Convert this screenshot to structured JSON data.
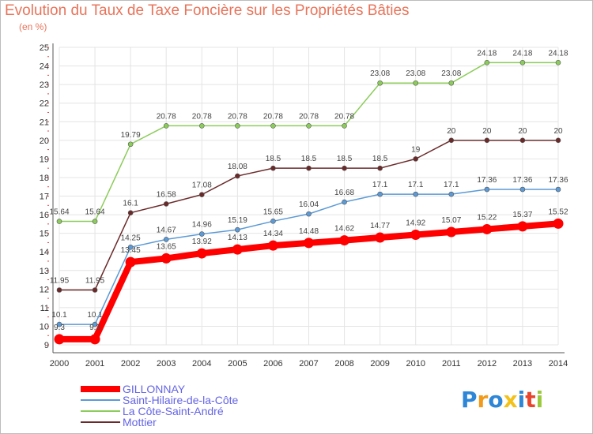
{
  "title": "Evolution du Taux de Taxe Foncière sur les Propriétés Bâties",
  "subtitle": "(en %)",
  "logo": {
    "text": "Proxiti",
    "letter_colors": [
      "#2e86d6",
      "#f29b1b",
      "#2e86d6",
      "#f2c21b",
      "#2e86d6",
      "#e8452c",
      "#9bc93c"
    ]
  },
  "chart_data": {
    "type": "line",
    "x": [
      "2000",
      "2001",
      "2002",
      "2003",
      "2004",
      "2005",
      "2006",
      "2007",
      "2008",
      "2009",
      "2010",
      "2011",
      "2012",
      "2013",
      "2014"
    ],
    "ylim": [
      9,
      25
    ],
    "yticks": [
      "9",
      "10",
      "11",
      "12",
      "13",
      "14",
      "15",
      "16",
      "17",
      "18",
      "19",
      "20",
      "21",
      "22",
      "23",
      "24",
      "25"
    ],
    "grid": true,
    "legend_position": "bottom-left",
    "series": [
      {
        "name": "Mottier",
        "color": "#6b2a2a",
        "values": [
          11.95,
          11.95,
          16.1,
          16.58,
          17.08,
          18.08,
          18.5,
          18.5,
          18.5,
          18.5,
          19,
          20,
          20,
          20,
          20
        ],
        "labels": [
          "11.95",
          "11.95",
          "16.1",
          "16.58",
          "17.08",
          "18.08",
          "18.5",
          "18.5",
          "18.5",
          "18.5",
          "19",
          "20",
          "20",
          "20",
          "20"
        ]
      },
      {
        "name": "La Côte-Saint-André",
        "color": "#8ccc5a",
        "values": [
          15.64,
          15.64,
          19.79,
          20.78,
          20.78,
          20.78,
          20.78,
          20.78,
          20.78,
          23.08,
          23.08,
          23.08,
          24.18,
          24.18,
          24.18
        ],
        "labels": [
          "15.64",
          "15.64",
          "19.79",
          "20.78",
          "20.78",
          "20.78",
          "20.78",
          "20.78",
          "20.78",
          "23.08",
          "23.08",
          "23.08",
          "24.18",
          "24.18",
          "24.18"
        ]
      },
      {
        "name": "Saint-Hilaire-de-la-Côte",
        "color": "#5b9ad6",
        "values": [
          10.1,
          10.1,
          14.25,
          14.67,
          14.96,
          15.19,
          15.65,
          16.04,
          16.68,
          17.1,
          17.1,
          17.1,
          17.36,
          17.36,
          17.36
        ],
        "labels": [
          "10.1",
          "10.1",
          "14.25",
          "14.67",
          "14.96",
          "15.19",
          "15.65",
          "16.04",
          "16.68",
          "17.1",
          "17.1",
          "17.1",
          "17.36",
          "17.36",
          "17.36"
        ]
      },
      {
        "name": "GILLONNAY",
        "color": "#ff0000",
        "values": [
          9.3,
          9.3,
          13.45,
          13.65,
          13.92,
          14.13,
          14.34,
          14.48,
          14.62,
          14.77,
          14.92,
          15.07,
          15.22,
          15.37,
          15.52
        ],
        "labels": [
          "9.3",
          "9.3",
          "13.45",
          "13.65",
          "13.92",
          "14.13",
          "14.34",
          "14.48",
          "14.62",
          "14.77",
          "14.92",
          "15.07",
          "15.22",
          "15.37",
          "15.52"
        ]
      }
    ],
    "legend_order": [
      "GILLONNAY",
      "Saint-Hilaire-de-la-Côte",
      "La Côte-Saint-André",
      "Mottier"
    ]
  }
}
